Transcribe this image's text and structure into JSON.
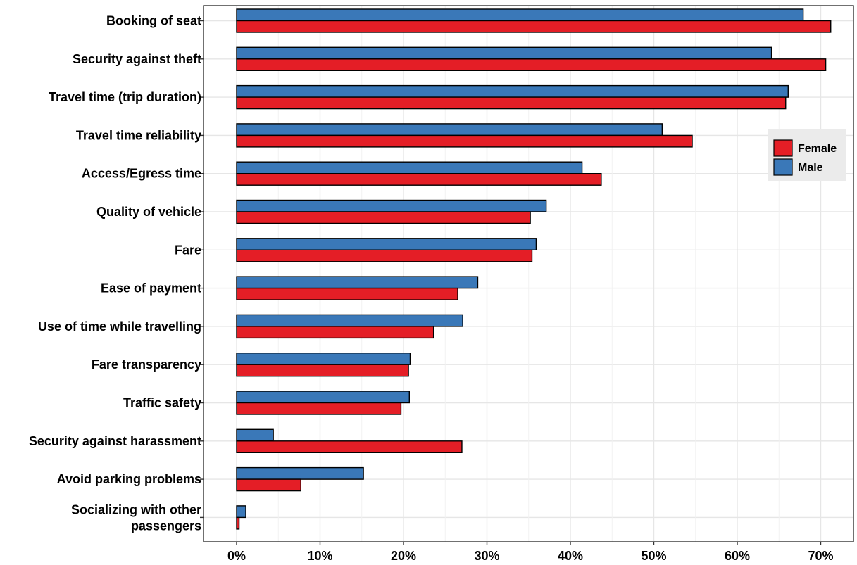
{
  "chart_data": {
    "type": "bar",
    "orientation": "horizontal",
    "categories": [
      "Booking of seat",
      "Security against theft",
      "Travel time (trip duration)",
      "Travel time reliability",
      "Access/Egress time",
      "Quality of vehicle",
      "Fare",
      "Ease of payment",
      "Use of time while travelling",
      "Fare transparency",
      "Traffic safety",
      "Security against harassment",
      "Avoid parking problems",
      "Socializing with other passengers"
    ],
    "series": [
      {
        "name": "Male",
        "color": "#3a78b8",
        "values": [
          67.9,
          64.1,
          66.1,
          51.0,
          41.4,
          37.1,
          35.9,
          28.9,
          27.1,
          20.8,
          20.7,
          4.4,
          15.2,
          1.1
        ]
      },
      {
        "name": "Female",
        "color": "#e41e26",
        "values": [
          71.2,
          70.6,
          65.8,
          54.6,
          43.7,
          35.2,
          35.4,
          26.5,
          23.6,
          20.6,
          19.7,
          27.0,
          7.7,
          0.3
        ]
      }
    ],
    "x_ticks": [
      "0%",
      "10%",
      "20%",
      "30%",
      "40%",
      "50%",
      "60%",
      "70%"
    ],
    "xlim": [
      -3.5,
      74
    ],
    "xlabel": "",
    "ylabel": "",
    "title": "",
    "grid": true,
    "legend_position": "right",
    "legend": [
      {
        "name": "Female",
        "color": "#e41e26"
      },
      {
        "name": "Male",
        "color": "#3a78b8"
      }
    ]
  }
}
